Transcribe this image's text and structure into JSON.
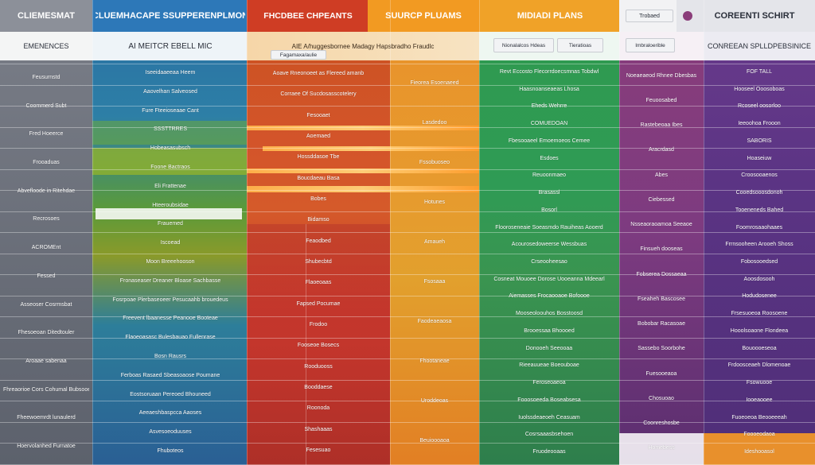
{
  "headers": {
    "c0": "CLIEMESMAT",
    "c1": "CLUEMHACAPE SSUPPERENPLMON",
    "c2": "FHCDBEE CHPEANTS",
    "c3": "SUURCP PLUAMS",
    "c4": "MIDIADI PLANS",
    "c5": "Trobaed",
    "c6": "COREENTI SCHIRT"
  },
  "subheaders": {
    "c0": "EMENENCES",
    "c1": "AI MEITCR EBELL MIC",
    "c2": "AIE A/huggesbornee Madagy Hapsbradho Fraudlc",
    "c3": "Fagamaxa/aulie",
    "c4a": "Nionalalcos Hdeas",
    "c4b": "Tieratioas",
    "c5": "Imbraloerible",
    "c6": "CONREEAN SPLLDPEBSINICE"
  },
  "left_labels": [
    "Feusurnstd",
    "Coommerd Subt",
    "Fred Hoeerce",
    "Frooaduas",
    "Abvefloode in Ritehdae",
    "Recrosoes",
    "ACROMEnt",
    "Fessed",
    "Asseoser Cosrmsbat",
    "Fhesoeoan Ditedtouler",
    "Aroaae sabenaa",
    "Fhreaorioe Cors Cohumal Bubsooedd",
    "Fheewoemrdt lunaulerd",
    "Hoervolanhed Furnatoe"
  ],
  "blue_rows": [
    "Iseeidaaeeaa Heem",
    "Aaovelhan Salveosed",
    "Fure Fteeioseaae Cant",
    "SSSTTRRES",
    "Hobeasasubsch",
    "Foone Bactraos",
    "Eli Frattenae",
    "Hteeroubsidae",
    "Frauemed",
    "Iscoead",
    "Moon Breeehooson",
    "Fronaseaser Dreaner Bloase Sachbasse",
    "Fosrpoae Plerbaseoeer Pesucaahb brouedeus",
    "Freevent lbaanesse Peanooe Booteae",
    "Flaoeoasasc Bulesbauao Fullenrase",
    "Bosn Rausrs",
    "Ferboas Rasaed Sbeasoaose Poumane",
    "Eostsoruaan Pereoed Bhouneed",
    "Aeeaeshbaspcca Aaoses",
    "Asvesoeoduuses",
    "Fhuboteos"
  ],
  "red_rows": [
    "Aoave Rneonoeet as Flereed amanb",
    "Corraee Of Sucdosasscotelery",
    "Fesooaet",
    "Aoemaed",
    "Hossddasoe Tbe",
    "Boucdaeau Basa",
    "Bobes",
    "Bidamso",
    "Feaodbed",
    "Shubecbtd",
    "Flaoeoaas",
    "Fapsed Pocumae",
    "Frodoo",
    "Fooseoe Bosecs",
    "Rooduooss",
    "Booddaese",
    "Roonoda",
    "Shashaaas",
    "Fesesuao"
  ],
  "orange_rows": [
    "Fieorea Esoenaeed",
    "Lasdedoo",
    "Fssobuoseo",
    "Hotunes",
    "Amaueh",
    "Fsosaaa",
    "Faodeaeaosa",
    "Fhootaneae",
    "Uroddeoas",
    "Beuioooaoa"
  ],
  "green_rows": [
    "Revt Eccosto Flecorrdoecsmnas Tobdwl",
    "Haasnoanseaeas Lhosa",
    "Eheds Wehrre",
    "COMUEDOAN",
    "Fbesooaeel Emoemoeos Cemee",
    "Esdoes",
    "Reuoonmaeo",
    "Brasassl",
    "Bosorl",
    "Flooroseneaie Soeasmdo Rauiheas Aooerd",
    "Acourosedoweerse Wessbuas",
    "Crseooheesao",
    "Cosneat Mouoee Dorose Uooeanna Mdeearl",
    "Aiemasses Frocaooaoe Bofoooe",
    "Mooseoloouhos Bosstoosd",
    "Brooessaa Bhoooed",
    "Donooeh Seeooaa",
    "Rieeauueae Boeouboae",
    "Feroseoaeoa",
    "Fooosoeeda Boseabsesa",
    "Iuolssdeaeoeh Ceasuam",
    "Cosrsaaasbsehoen",
    "Fruodeooaas"
  ],
  "purple_rows": [
    "Noeaeaeod Rhnee Dbesbas",
    "Feuoosabed",
    "Rastebeoaa Ibes",
    "Aracrdasd",
    "Abes",
    "Ciebessed",
    "Nsseaoraoamoa Seeaoe",
    "Finsueh dooseas",
    "Fobserea Dossaeaa",
    "Fseaheh Bascosee",
    "Bobobar Racasoae",
    "Sassebo Soorbohe",
    "Fuesooeaoa",
    "Chosuoao",
    "Coonreshosbe",
    "Homebess"
  ],
  "violet_rows": [
    "FOF TALL",
    "Hooseel Ooosoboas",
    "Rcoseel oosorloo",
    "Ieeoohoa Frooon",
    "SABORIS",
    "Hoaseiuw",
    "Croosooaenos",
    "Cooedsooosdonoh",
    "Tooeneneds Bahed",
    "Foomrosaaohaaes",
    "Frrnsooheen Arooeh Shoss",
    "Fobosooedsed",
    "Aoosdosooh",
    "Hodudosenee",
    "Frsesuoeoa Roosoene",
    "Hooolsoaone Flondeea",
    "Bouoooeseoa",
    "Frdoosceaeh Dlomenoae",
    "Fsowuooe",
    "Iooeaooee",
    "Fuoeoeoa Beooeeeah",
    "Foooeodaoa",
    "Ideshooasol"
  ]
}
